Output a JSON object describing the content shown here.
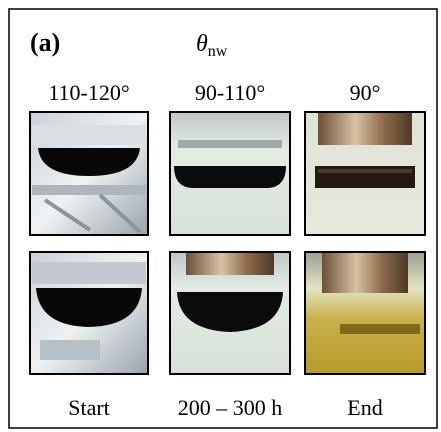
{
  "panel_label": "(a)",
  "symbol": {
    "base": "θ",
    "subscript": "nw"
  },
  "columns": [
    {
      "header": "110-120°",
      "footer": "Start"
    },
    {
      "header": "90-110°",
      "footer": "200 – 300 h"
    },
    {
      "header": "90°",
      "footer": "End"
    }
  ]
}
